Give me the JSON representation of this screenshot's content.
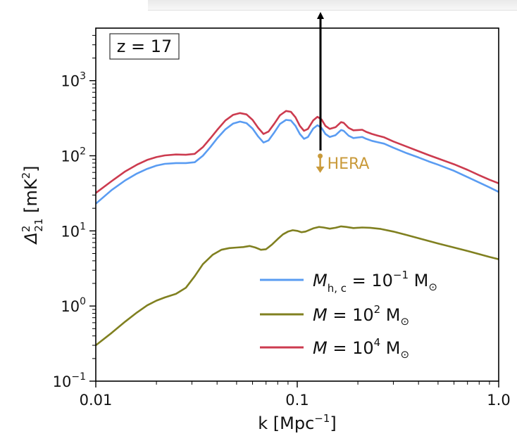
{
  "chart_data": {
    "type": "line",
    "xscale": "log",
    "yscale": "log",
    "xlim": [
      0.01,
      1.0
    ],
    "ylim": [
      0.1,
      5000
    ],
    "xticks": [
      {
        "value": 0.01,
        "label": "0.01"
      },
      {
        "value": 0.1,
        "label": "0.1"
      },
      {
        "value": 1.0,
        "label": "1.0"
      }
    ],
    "yticks": [
      {
        "value": 0.1,
        "base": "10",
        "exp": "−1"
      },
      {
        "value": 1,
        "base": "10",
        "exp": "0"
      },
      {
        "value": 10,
        "base": "10",
        "exp": "1"
      },
      {
        "value": 100,
        "base": "10",
        "exp": "2"
      },
      {
        "value": 1000,
        "base": "10",
        "exp": "3"
      }
    ],
    "xlabel": {
      "main": "k [Mpc",
      "sup": "−1",
      "tail": "]"
    },
    "ylabel": {
      "main": "Δ",
      "sup": "2",
      "sub": "21",
      "tail": " [mK",
      "sup2": "2",
      "tail2": "]"
    },
    "annotation": "z = 17",
    "legend_position": "lower-right",
    "series": [
      {
        "name": {
          "sym": "M",
          "sub": "h, c",
          "rest": " = 10",
          "exp": "−1",
          "unit": " M",
          "unit_sub": "⊙"
        },
        "color": "#5a9cf2",
        "points": [
          [
            0.01,
            23
          ],
          [
            0.012,
            35
          ],
          [
            0.014,
            47
          ],
          [
            0.016,
            58
          ],
          [
            0.018,
            67
          ],
          [
            0.02,
            74
          ],
          [
            0.022,
            78
          ],
          [
            0.025,
            80
          ],
          [
            0.028,
            80
          ],
          [
            0.031,
            82
          ],
          [
            0.034,
            100
          ],
          [
            0.037,
            130
          ],
          [
            0.04,
            170
          ],
          [
            0.044,
            225
          ],
          [
            0.048,
            268
          ],
          [
            0.052,
            285
          ],
          [
            0.056,
            272
          ],
          [
            0.06,
            230
          ],
          [
            0.064,
            180
          ],
          [
            0.068,
            150
          ],
          [
            0.072,
            160
          ],
          [
            0.077,
            205
          ],
          [
            0.082,
            265
          ],
          [
            0.088,
            300
          ],
          [
            0.093,
            295
          ],
          [
            0.098,
            250
          ],
          [
            0.103,
            195
          ],
          [
            0.108,
            168
          ],
          [
            0.113,
            178
          ],
          [
            0.12,
            230
          ],
          [
            0.126,
            255
          ],
          [
            0.132,
            235
          ],
          [
            0.138,
            195
          ],
          [
            0.145,
            178
          ],
          [
            0.155,
            188
          ],
          [
            0.165,
            220
          ],
          [
            0.17,
            215
          ],
          [
            0.18,
            185
          ],
          [
            0.19,
            172
          ],
          [
            0.2,
            175
          ],
          [
            0.21,
            178
          ],
          [
            0.22,
            168
          ],
          [
            0.235,
            158
          ],
          [
            0.25,
            152
          ],
          [
            0.27,
            145
          ],
          [
            0.3,
            128
          ],
          [
            0.35,
            108
          ],
          [
            0.4,
            95
          ],
          [
            0.45,
            84
          ],
          [
            0.5,
            76
          ],
          [
            0.6,
            63
          ],
          [
            0.7,
            52
          ],
          [
            0.8,
            44
          ],
          [
            0.9,
            38
          ],
          [
            1.0,
            33
          ]
        ]
      },
      {
        "name": {
          "sym": "M",
          "sub": "",
          "rest": " = 10",
          "exp": "2",
          "unit": " M",
          "unit_sub": "⊙"
        },
        "color": "#808020",
        "points": [
          [
            0.01,
            0.3
          ],
          [
            0.012,
            0.44
          ],
          [
            0.014,
            0.62
          ],
          [
            0.016,
            0.82
          ],
          [
            0.018,
            1.02
          ],
          [
            0.02,
            1.18
          ],
          [
            0.022,
            1.3
          ],
          [
            0.025,
            1.45
          ],
          [
            0.028,
            1.75
          ],
          [
            0.031,
            2.5
          ],
          [
            0.034,
            3.6
          ],
          [
            0.038,
            4.8
          ],
          [
            0.042,
            5.6
          ],
          [
            0.046,
            5.9
          ],
          [
            0.05,
            6.0
          ],
          [
            0.054,
            6.1
          ],
          [
            0.058,
            6.3
          ],
          [
            0.062,
            6.0
          ],
          [
            0.066,
            5.6
          ],
          [
            0.07,
            5.7
          ],
          [
            0.075,
            6.6
          ],
          [
            0.08,
            7.8
          ],
          [
            0.085,
            9.0
          ],
          [
            0.09,
            9.8
          ],
          [
            0.095,
            10.2
          ],
          [
            0.1,
            10.0
          ],
          [
            0.105,
            9.6
          ],
          [
            0.11,
            9.8
          ],
          [
            0.12,
            10.8
          ],
          [
            0.128,
            11.3
          ],
          [
            0.135,
            11.1
          ],
          [
            0.145,
            10.7
          ],
          [
            0.155,
            11.0
          ],
          [
            0.165,
            11.5
          ],
          [
            0.175,
            11.3
          ],
          [
            0.19,
            10.9
          ],
          [
            0.21,
            11.1
          ],
          [
            0.23,
            11.0
          ],
          [
            0.26,
            10.6
          ],
          [
            0.3,
            9.8
          ],
          [
            0.35,
            8.8
          ],
          [
            0.4,
            8.0
          ],
          [
            0.5,
            6.8
          ],
          [
            0.6,
            6.0
          ],
          [
            0.7,
            5.4
          ],
          [
            0.8,
            4.9
          ],
          [
            0.9,
            4.5
          ],
          [
            1.0,
            4.2
          ]
        ]
      },
      {
        "name": {
          "sym": "M",
          "sub": "",
          "rest": " = 10",
          "exp": "4",
          "unit": " M",
          "unit_sub": "⊙"
        },
        "color": "#cc3b4f",
        "points": [
          [
            0.01,
            32
          ],
          [
            0.012,
            46
          ],
          [
            0.014,
            62
          ],
          [
            0.016,
            76
          ],
          [
            0.018,
            88
          ],
          [
            0.02,
            96
          ],
          [
            0.022,
            101
          ],
          [
            0.025,
            104
          ],
          [
            0.028,
            103
          ],
          [
            0.031,
            106
          ],
          [
            0.034,
            130
          ],
          [
            0.037,
            170
          ],
          [
            0.04,
            220
          ],
          [
            0.044,
            295
          ],
          [
            0.048,
            350
          ],
          [
            0.052,
            370
          ],
          [
            0.056,
            355
          ],
          [
            0.06,
            300
          ],
          [
            0.064,
            235
          ],
          [
            0.068,
            195
          ],
          [
            0.072,
            210
          ],
          [
            0.077,
            268
          ],
          [
            0.082,
            345
          ],
          [
            0.088,
            395
          ],
          [
            0.093,
            385
          ],
          [
            0.098,
            325
          ],
          [
            0.103,
            250
          ],
          [
            0.108,
            215
          ],
          [
            0.113,
            228
          ],
          [
            0.12,
            295
          ],
          [
            0.126,
            330
          ],
          [
            0.132,
            305
          ],
          [
            0.138,
            250
          ],
          [
            0.145,
            228
          ],
          [
            0.155,
            240
          ],
          [
            0.165,
            280
          ],
          [
            0.17,
            275
          ],
          [
            0.18,
            235
          ],
          [
            0.19,
            218
          ],
          [
            0.2,
            220
          ],
          [
            0.21,
            222
          ],
          [
            0.22,
            208
          ],
          [
            0.235,
            195
          ],
          [
            0.25,
            186
          ],
          [
            0.27,
            176
          ],
          [
            0.3,
            155
          ],
          [
            0.35,
            132
          ],
          [
            0.4,
            115
          ],
          [
            0.45,
            102
          ],
          [
            0.5,
            92
          ],
          [
            0.6,
            77
          ],
          [
            0.7,
            65
          ],
          [
            0.8,
            55
          ],
          [
            0.9,
            48
          ],
          [
            1.0,
            43
          ]
        ]
      }
    ],
    "hera": {
      "label": "HERA",
      "x": 0.13,
      "y": 80,
      "color": "#c99a3a"
    }
  }
}
